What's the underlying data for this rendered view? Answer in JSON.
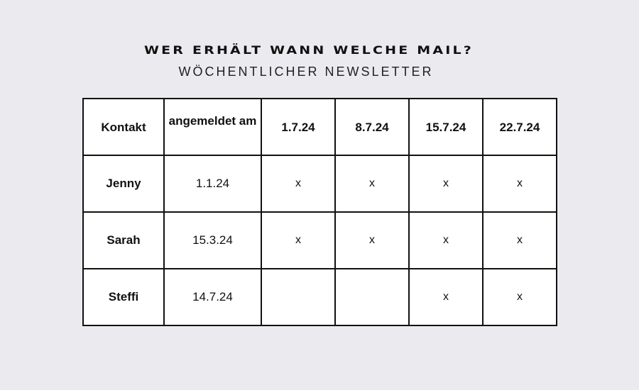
{
  "title": "Wer erhält wann welche Mail?",
  "subtitle": "WÖCHENTLICHER NEWSLETTER",
  "table": {
    "headers": [
      "Kontakt",
      "angemeldet am",
      "1.7.24",
      "8.7.24",
      "15.7.24",
      "22.7.24"
    ],
    "rows": [
      {
        "name": "Jenny",
        "signup": "1.1.24",
        "marks": [
          "x",
          "x",
          "x",
          "x"
        ]
      },
      {
        "name": "Sarah",
        "signup": "15.3.24",
        "marks": [
          "x",
          "x",
          "x",
          "x"
        ]
      },
      {
        "name": "Steffi",
        "signup": "14.7.24",
        "marks": [
          "",
          "",
          "x",
          "x"
        ]
      }
    ]
  },
  "colors": {
    "background": "#ebeaef",
    "table_background": "#ffffff",
    "border": "#111111",
    "text": "#111111"
  }
}
